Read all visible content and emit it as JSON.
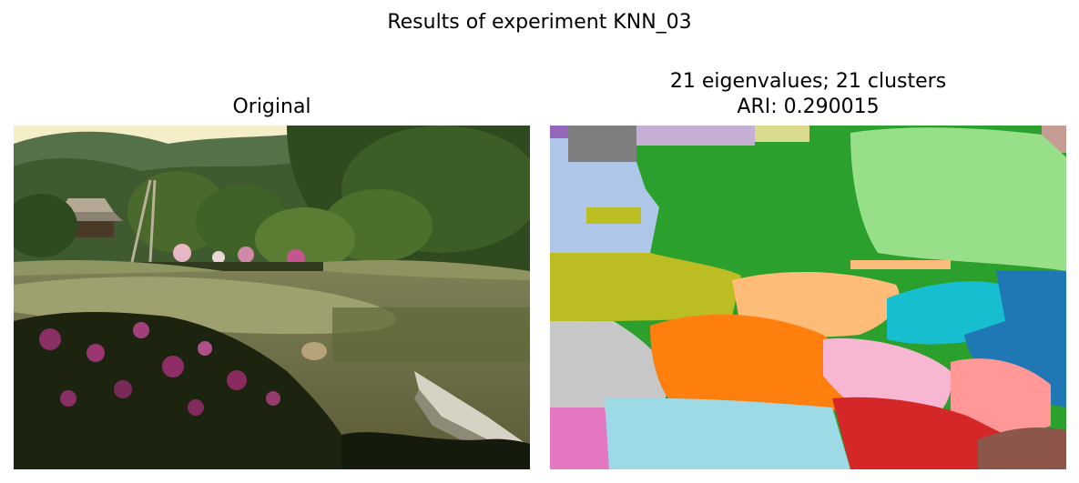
{
  "figure": {
    "suptitle": "Results of experiment KNN_03",
    "left_title": "Original",
    "right_title_line1": "21 eigenvalues; 21 clusters",
    "right_title_line2": "ARI: 0.290015"
  },
  "colors": {
    "blue": "#1f77b4",
    "lightblue": "#aec7e8",
    "orange": "#ff7f0e",
    "peach": "#ffbb78",
    "green": "#2ca02c",
    "lightgreen": "#98df8a",
    "red": "#d62728",
    "salmon": "#ff9896",
    "lavender": "#c5b0d5",
    "brown": "#8c564b",
    "pink": "#e377c2",
    "lightpink": "#f7b6d2",
    "gray": "#7f7f7f",
    "silver": "#c7c7c7",
    "olive": "#bcbd22",
    "khaki": "#dbdb8d",
    "cyan": "#17becf",
    "paleblue": "#9edae5",
    "purple": "#9467bd"
  },
  "icons": [
    "photo-garden-pond",
    "segmentation-map"
  ]
}
